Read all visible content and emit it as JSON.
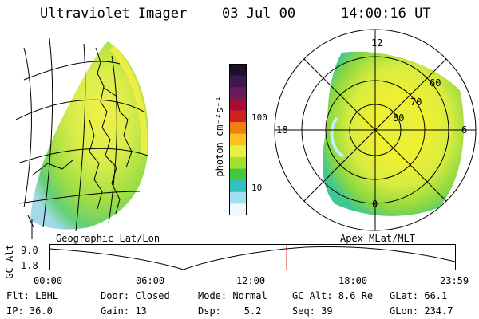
{
  "header": {
    "title": "Ultraviolet Imager",
    "date": "03 Jul 00",
    "time": "14:00:16 UT"
  },
  "colorbar": {
    "unit_label": "photon cm⁻²s⁻¹",
    "ticks": [
      "100",
      "10"
    ],
    "colors": [
      "#1a1028",
      "#3a1a4a",
      "#6a1a5a",
      "#a01030",
      "#d02020",
      "#f08010",
      "#f8c020",
      "#e8f040",
      "#a0e030",
      "#40c840",
      "#30c0c0",
      "#a0e0f0",
      "#f0f8ff"
    ]
  },
  "polar": {
    "mlt_labels": [
      "12",
      "18",
      "6",
      "0"
    ],
    "lat_labels": [
      "60",
      "70",
      "80"
    ]
  },
  "captions": {
    "left": "Geographic Lat/Lon",
    "right": "Apex MLat/MLT"
  },
  "timeline": {
    "ylabel": "GC Alt",
    "yticks": [
      "9.0",
      "1.8"
    ],
    "xticks": [
      "00:00",
      "06:00",
      "12:00",
      "18:00",
      "23:59"
    ],
    "current_fraction": 0.584,
    "marker_color": "#cc0000"
  },
  "info": {
    "row1": [
      "Flt: LBHL",
      "Door: Closed",
      "Mode: Normal",
      "GC Alt: 8.6 Re",
      "GLat: 66.1"
    ],
    "row2": [
      "IP: 36.0",
      "Gain: 13",
      "Dsp:    5.2",
      "Seq: 39",
      "GLon: 234.7"
    ]
  }
}
